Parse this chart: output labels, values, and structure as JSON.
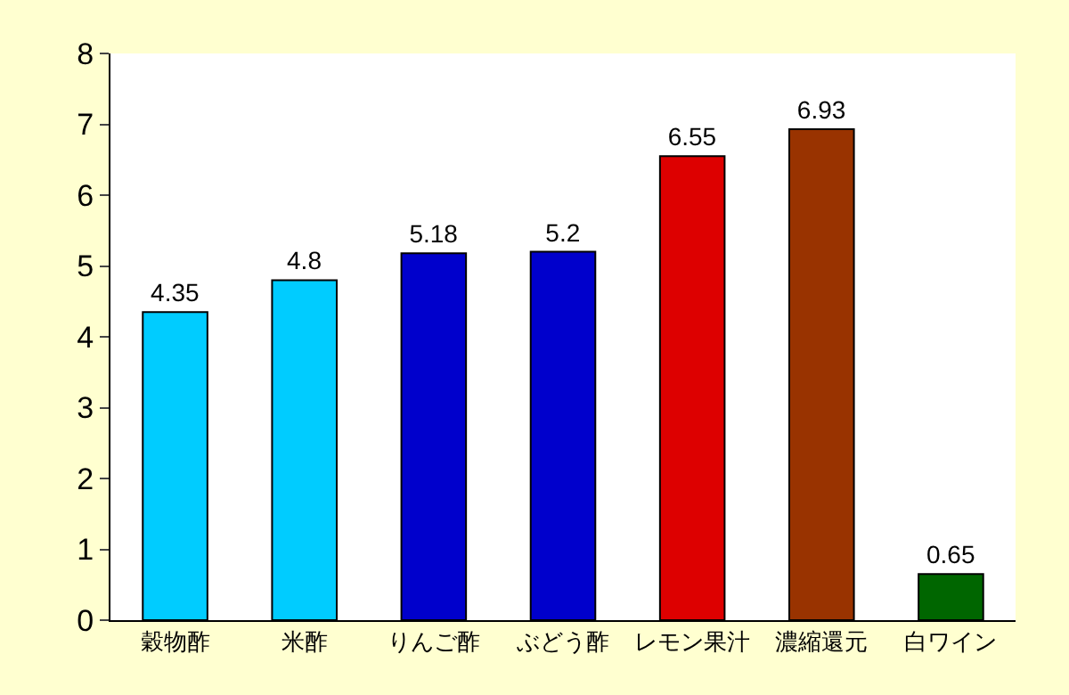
{
  "chart_data": {
    "type": "bar",
    "categories": [
      "穀物酢",
      "米酢",
      "りんご酢",
      "ぶどう酢",
      "レモン果汁",
      "濃縮還元",
      "白ワイン"
    ],
    "values": [
      4.35,
      4.8,
      5.18,
      5.2,
      6.55,
      6.93,
      0.65
    ],
    "colors": [
      "#00ccff",
      "#00ccff",
      "#0000cc",
      "#0000cc",
      "#dd0000",
      "#993300",
      "#006600"
    ],
    "ylim": [
      0,
      8
    ],
    "yticks": [
      0,
      1,
      2,
      3,
      4,
      5,
      6,
      7,
      8
    ],
    "data_labels": true
  }
}
